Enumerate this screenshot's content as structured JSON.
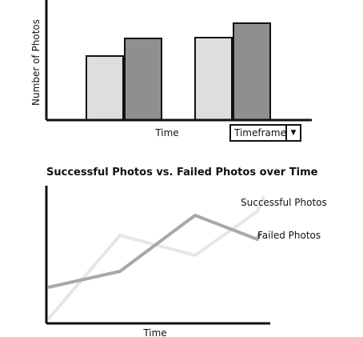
{
  "chart_data": [
    {
      "type": "bar",
      "categories": [
        "",
        ""
      ],
      "series": [
        {
          "name": "",
          "values": [
            80,
            103
          ],
          "color": "#dedede"
        },
        {
          "name": "",
          "values": [
            102,
            121
          ],
          "color": "#8f8f8f"
        }
      ],
      "xlabel": "Time",
      "ylabel": "Number of Photos",
      "ylim": [
        0,
        145
      ],
      "grid": false
    },
    {
      "type": "line",
      "title": "Successful Photos vs. Failed Photos over Time",
      "x": [
        0,
        1,
        2,
        3,
        4
      ],
      "series": [
        {
          "name": "Successful Photos",
          "values": [
            5,
            110,
            85,
            140,
            null
          ],
          "color": "#e6e6e6"
        },
        {
          "name": "Failed Photos",
          "values": [
            45,
            65,
            135,
            105,
            null
          ],
          "color": "#a8a8a8"
        }
      ],
      "xlabel": "Time",
      "ylabel": "",
      "ylim": [
        0,
        170
      ],
      "grid": false
    }
  ],
  "controls": {
    "timeframe_value": "Timeframe",
    "dropdown_icon": "caret-down-icon"
  }
}
